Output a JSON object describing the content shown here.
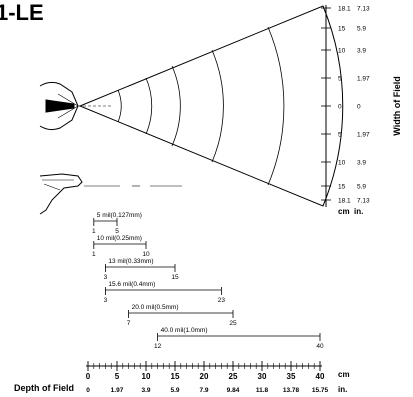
{
  "title": "1-LE",
  "width_axis": {
    "label": "Width of Field",
    "cm_ticks": [
      "18.1",
      "15",
      "10",
      "5",
      "0",
      "5",
      "10",
      "15",
      "18.1"
    ],
    "in_ticks": [
      "7.13",
      "5.9",
      "3.9",
      "1.97",
      "0",
      "1.97",
      "3.9",
      "5.9",
      "7.13"
    ],
    "cm_unit": "cm",
    "in_unit": "in."
  },
  "resolution_bars": [
    {
      "label": "5 mil(0.127mm)",
      "start": "1",
      "end": "5",
      "start_cm": 1,
      "end_cm": 5
    },
    {
      "label": "10 mil(0.25mm)",
      "start": "1",
      "end": "10",
      "start_cm": 1,
      "end_cm": 10
    },
    {
      "label": "13 mil(0.33mm)",
      "start": "3",
      "end": "15",
      "start_cm": 3,
      "end_cm": 15
    },
    {
      "label": "15.6 mil(0.4mm)",
      "start": "3",
      "end": "23",
      "start_cm": 3,
      "end_cm": 23
    },
    {
      "label": "20.0 mil(0.5mm)",
      "start": "7",
      "end": "25",
      "start_cm": 7,
      "end_cm": 25
    },
    {
      "label": "40.0 mil(1.0mm)",
      "start": "12",
      "end": "40",
      "start_cm": 12,
      "end_cm": 40
    }
  ],
  "depth_axis": {
    "label": "Depth of Field",
    "cm_ticks": [
      "0",
      "5",
      "10",
      "15",
      "20",
      "25",
      "30",
      "35",
      "40"
    ],
    "in_ticks": [
      "0",
      "1.97",
      "3.9",
      "5.9",
      "7.9",
      "9.84",
      "11.8",
      "13.78",
      "15.75"
    ],
    "cm_unit": "cm",
    "in_unit": "in."
  }
}
